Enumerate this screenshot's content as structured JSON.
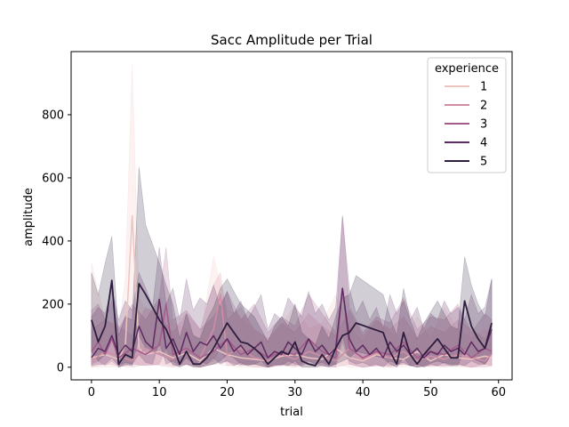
{
  "chart_data": {
    "type": "line",
    "title": "Sacc Amplitude per Trial",
    "xlabel": "trial",
    "ylabel": "amplitude",
    "xlim": [
      -3,
      62
    ],
    "ylim": [
      -40,
      1000
    ],
    "xticks": [
      0,
      10,
      20,
      30,
      40,
      50,
      60
    ],
    "yticks": [
      0,
      200,
      400,
      600,
      800
    ],
    "grid": false,
    "legend": {
      "title": "experience",
      "placement": "top-right"
    },
    "series": [
      {
        "name": "1",
        "color": "#ecc5c0",
        "x": [
          0,
          2,
          4,
          5,
          6,
          7,
          8,
          10,
          12,
          14,
          16,
          18,
          20,
          22,
          24,
          26,
          28,
          30,
          32,
          34,
          36,
          38,
          40,
          42,
          44,
          46,
          48,
          50,
          52,
          54,
          56,
          58,
          59
        ],
        "values": [
          30,
          40,
          25,
          70,
          480,
          60,
          40,
          50,
          30,
          45,
          20,
          60,
          40,
          30,
          25,
          20,
          35,
          40,
          30,
          25,
          60,
          30,
          20,
          40,
          30,
          25,
          50,
          20,
          40,
          30,
          25,
          35,
          30
        ],
        "lower": [
          0,
          0,
          0,
          10,
          20,
          5,
          5,
          10,
          5,
          5,
          0,
          10,
          5,
          0,
          0,
          0,
          5,
          5,
          0,
          0,
          10,
          0,
          0,
          5,
          0,
          0,
          10,
          0,
          5,
          0,
          0,
          5,
          0
        ],
        "upper": [
          330,
          150,
          120,
          280,
          960,
          220,
          180,
          200,
          140,
          120,
          90,
          350,
          180,
          160,
          120,
          90,
          130,
          200,
          120,
          140,
          230,
          130,
          80,
          150,
          110,
          80,
          160,
          90,
          190,
          120,
          90,
          120,
          110
        ]
      },
      {
        "name": "2",
        "color": "#d08ea5",
        "x": [
          0,
          2,
          4,
          6,
          8,
          10,
          12,
          14,
          16,
          18,
          19,
          20,
          22,
          24,
          26,
          28,
          30,
          32,
          34,
          36,
          38,
          40,
          42,
          44,
          46,
          48,
          50,
          52,
          54,
          56,
          58,
          59
        ],
        "values": [
          20,
          50,
          35,
          20,
          60,
          40,
          25,
          60,
          30,
          120,
          230,
          40,
          60,
          30,
          20,
          40,
          25,
          50,
          35,
          20,
          60,
          25,
          45,
          30,
          50,
          20,
          35,
          25,
          40,
          30,
          20,
          40
        ],
        "lower": [
          0,
          10,
          5,
          0,
          10,
          5,
          0,
          10,
          0,
          20,
          60,
          5,
          10,
          0,
          0,
          5,
          0,
          10,
          5,
          0,
          10,
          0,
          5,
          0,
          10,
          0,
          5,
          0,
          5,
          0,
          0,
          5
        ],
        "upper": [
          120,
          150,
          130,
          100,
          190,
          160,
          110,
          170,
          120,
          260,
          300,
          150,
          190,
          120,
          90,
          140,
          110,
          170,
          130,
          100,
          180,
          100,
          150,
          120,
          160,
          90,
          130,
          110,
          150,
          120,
          90,
          140
        ]
      },
      {
        "name": "3",
        "color": "#a45a8a",
        "x": [
          0,
          1,
          2,
          3,
          4,
          6,
          8,
          10,
          11,
          12,
          14,
          16,
          18,
          20,
          22,
          24,
          26,
          28,
          30,
          32,
          34,
          36,
          37,
          38,
          40,
          42,
          44,
          46,
          48,
          50,
          52,
          54,
          56,
          58,
          59
        ],
        "values": [
          50,
          80,
          40,
          90,
          30,
          60,
          40,
          70,
          200,
          40,
          60,
          30,
          50,
          90,
          40,
          60,
          30,
          50,
          40,
          90,
          50,
          30,
          250,
          60,
          30,
          50,
          40,
          80,
          30,
          50,
          40,
          70,
          30,
          60,
          50
        ],
        "lower": [
          10,
          20,
          5,
          20,
          0,
          10,
          5,
          10,
          60,
          5,
          10,
          0,
          10,
          20,
          5,
          10,
          0,
          10,
          5,
          20,
          5,
          0,
          80,
          10,
          0,
          5,
          5,
          10,
          0,
          5,
          5,
          10,
          0,
          10,
          5
        ],
        "upper": [
          180,
          200,
          150,
          210,
          120,
          200,
          150,
          220,
          380,
          150,
          180,
          120,
          160,
          240,
          150,
          200,
          110,
          160,
          130,
          230,
          170,
          110,
          480,
          190,
          110,
          160,
          140,
          220,
          120,
          160,
          150,
          200,
          110,
          170,
          150
        ]
      },
      {
        "name": "4",
        "color": "#5d2c62",
        "x": [
          0,
          1,
          2,
          3,
          4,
          5,
          6,
          7,
          8,
          9,
          10,
          11,
          12,
          13,
          14,
          15,
          16,
          17,
          18,
          19,
          20,
          21,
          22,
          23,
          24,
          25,
          26,
          27,
          28,
          29,
          30,
          31,
          32,
          33,
          34,
          35,
          36,
          37,
          38,
          39,
          40,
          41,
          42,
          43,
          44,
          45,
          46,
          47,
          48,
          49,
          50,
          51,
          52,
          53,
          54,
          55,
          56,
          57,
          58,
          59
        ],
        "values": [
          30,
          60,
          50,
          100,
          40,
          70,
          50,
          130,
          80,
          60,
          215,
          60,
          90,
          40,
          110,
          50,
          80,
          70,
          100,
          60,
          90,
          50,
          70,
          40,
          60,
          80,
          30,
          50,
          40,
          80,
          60,
          40,
          90,
          50,
          70,
          40,
          60,
          250,
          90,
          50,
          70,
          40,
          60,
          30,
          80,
          50,
          70,
          40,
          60,
          30,
          50,
          40,
          70,
          50,
          60,
          40,
          80,
          50,
          60,
          120
        ],
        "lower": [
          5,
          10,
          10,
          30,
          5,
          15,
          10,
          40,
          15,
          10,
          80,
          10,
          20,
          5,
          30,
          10,
          20,
          10,
          30,
          10,
          20,
          5,
          15,
          5,
          10,
          20,
          0,
          10,
          5,
          20,
          10,
          5,
          20,
          10,
          15,
          5,
          10,
          100,
          20,
          10,
          15,
          5,
          10,
          0,
          20,
          10,
          15,
          5,
          10,
          0,
          10,
          5,
          15,
          10,
          10,
          5,
          20,
          10,
          10,
          40
        ],
        "upper": [
          160,
          190,
          170,
          250,
          150,
          210,
          180,
          300,
          250,
          190,
          380,
          200,
          250,
          150,
          280,
          180,
          220,
          200,
          260,
          190,
          240,
          170,
          210,
          150,
          190,
          230,
          120,
          170,
          150,
          220,
          190,
          160,
          240,
          170,
          200,
          150,
          190,
          480,
          250,
          170,
          210,
          150,
          190,
          120,
          230,
          170,
          210,
          150,
          190,
          120,
          170,
          150,
          210,
          170,
          190,
          150,
          230,
          170,
          190,
          280
        ]
      },
      {
        "name": "5",
        "color": "#2d1e3e",
        "x": [
          0,
          1,
          2,
          3,
          4,
          5,
          6,
          7,
          8,
          10,
          11,
          12,
          13,
          14,
          15,
          16,
          17,
          18,
          19,
          20,
          21,
          22,
          23,
          24,
          25,
          26,
          27,
          28,
          29,
          30,
          31,
          32,
          33,
          34,
          35,
          36,
          37,
          38,
          39,
          43,
          44,
          45,
          46,
          47,
          48,
          49,
          51,
          53,
          54,
          55,
          56,
          57,
          58,
          59
        ],
        "values": [
          150,
          80,
          130,
          275,
          10,
          40,
          30,
          265,
          230,
          150,
          120,
          70,
          10,
          50,
          10,
          10,
          30,
          60,
          100,
          140,
          110,
          80,
          75,
          60,
          40,
          10,
          30,
          50,
          40,
          80,
          20,
          10,
          5,
          40,
          10,
          60,
          100,
          110,
          140,
          110,
          50,
          10,
          110,
          40,
          10,
          40,
          90,
          30,
          30,
          210,
          130,
          90,
          60,
          140
        ],
        "lower": [
          50,
          20,
          40,
          110,
          0,
          10,
          5,
          100,
          60,
          40,
          30,
          10,
          0,
          10,
          0,
          0,
          5,
          10,
          20,
          40,
          30,
          10,
          10,
          10,
          5,
          0,
          5,
          10,
          5,
          20,
          0,
          0,
          0,
          5,
          0,
          10,
          20,
          30,
          50,
          30,
          10,
          0,
          30,
          5,
          0,
          5,
          20,
          5,
          5,
          60,
          30,
          20,
          10,
          40
        ],
        "upper": [
          300,
          230,
          330,
          415,
          100,
          160,
          150,
          635,
          450,
          330,
          260,
          200,
          90,
          170,
          100,
          90,
          150,
          190,
          250,
          280,
          240,
          200,
          180,
          160,
          120,
          80,
          130,
          160,
          130,
          200,
          110,
          90,
          70,
          130,
          90,
          160,
          220,
          230,
          290,
          230,
          160,
          100,
          250,
          150,
          90,
          140,
          210,
          130,
          120,
          350,
          260,
          200,
          160,
          280
        ]
      }
    ]
  }
}
